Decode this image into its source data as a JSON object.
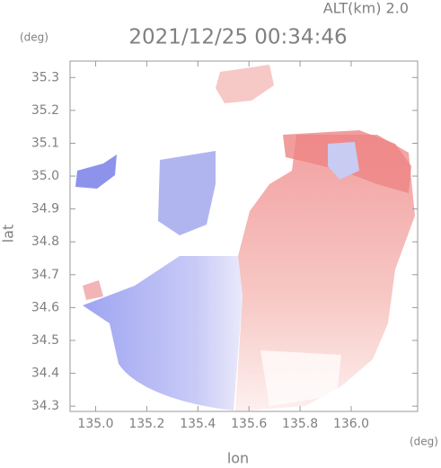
{
  "chart_data": {
    "type": "radar",
    "annotation": "ALT(km) 2.0",
    "title": "2021/12/25 00:34:46",
    "xlabel": "lon",
    "ylabel": "lat",
    "xunit": "(deg)",
    "yunit": "(deg)",
    "xlim": [
      134.9,
      136.26
    ],
    "ylim": [
      34.284,
      35.35
    ],
    "xticks": [
      {
        "value": 135,
        "label": "135.0"
      },
      135.2,
      135.4,
      135.6,
      135.8,
      {
        "value": 136,
        "label": "136.0"
      }
    ],
    "yticks": [
      34.3,
      34.4,
      34.5,
      34.6,
      34.7,
      34.8,
      34.9,
      {
        "value": 35,
        "label": "35.0"
      },
      35.1,
      35.2,
      35.3
    ]
  }
}
